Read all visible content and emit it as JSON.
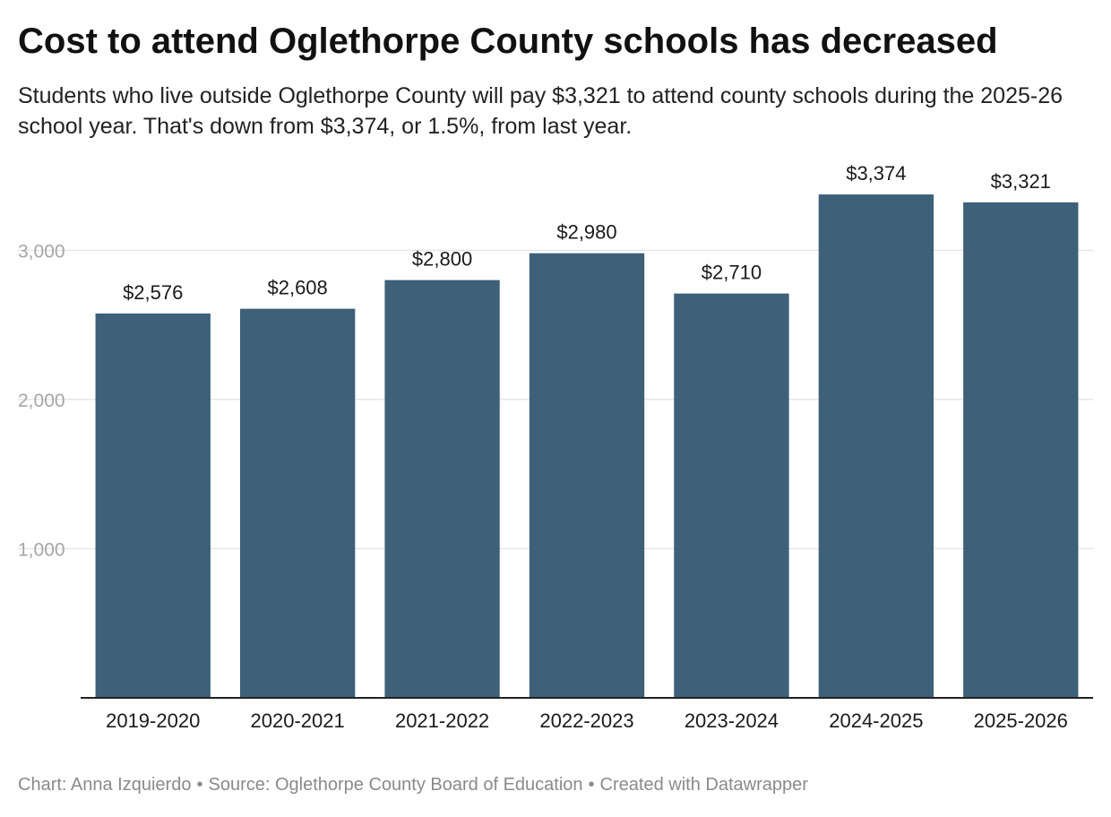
{
  "chart_data": {
    "type": "bar",
    "title": "Cost to attend Oglethorpe County schools has decreased",
    "subtitle": "Students who live outside Oglethorpe County will pay $3,321 to attend county schools during the 2025-26 school year. That's down from $3,374, or 1.5%, from last year.",
    "categories": [
      "2019-2020",
      "2020-2021",
      "2021-2022",
      "2022-2023",
      "2023-2024",
      "2024-2025",
      "2025-2026"
    ],
    "values": [
      2576,
      2608,
      2800,
      2980,
      2710,
      3374,
      3321
    ],
    "data_labels": [
      "$2,576",
      "$2,608",
      "$2,800",
      "$2,980",
      "$2,710",
      "$3,374",
      "$3,321"
    ],
    "xlabel": "",
    "ylabel": "",
    "ylim": [
      0,
      3400
    ],
    "yticks": [
      1000,
      2000,
      3000
    ],
    "ytick_labels": [
      "1,000",
      "2,000",
      "3,000"
    ],
    "grid": true,
    "bar_color": "#3e6079"
  },
  "footer": {
    "credit": "Chart: Anna Izquierdo",
    "source": "Source: Oglethorpe County Board of Education",
    "tool": "Created with Datawrapper",
    "separator": "•"
  }
}
